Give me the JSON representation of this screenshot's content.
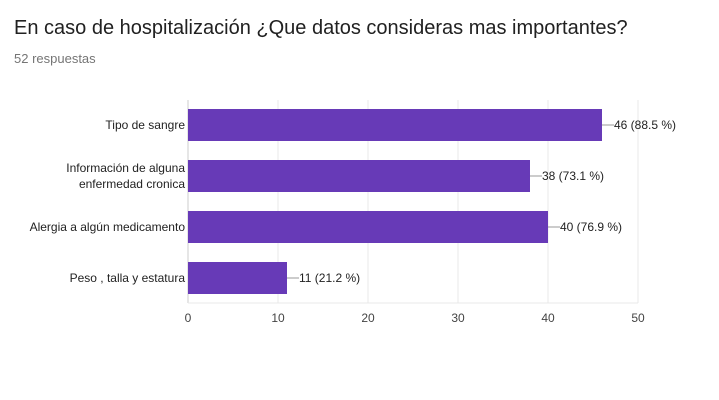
{
  "title": "En caso de hospitalización ¿Que datos consideras mas importantes?",
  "subtitle": "52 respuestas",
  "colors": {
    "bar": "#673ab7",
    "grid": "#e8e8e8",
    "axis": "#cccccc",
    "leader": "#999999"
  },
  "chart_data": {
    "type": "bar",
    "orientation": "horizontal",
    "categories": [
      [
        "Tipo de sangre"
      ],
      [
        "Información de alguna",
        "enfermedad cronica"
      ],
      [
        "Alergia a algún medicamento"
      ],
      [
        "Peso , talla y estatura"
      ]
    ],
    "values": [
      46,
      38,
      40,
      11
    ],
    "data_labels": [
      "46 (88.5 %)",
      "38 (73.1 %)",
      "40 (76.9 %)",
      "11 (21.2 %)"
    ],
    "xlim": [
      0,
      50
    ],
    "xticks": [
      0,
      10,
      20,
      30,
      40,
      50
    ],
    "grid": true,
    "legend": "none"
  }
}
